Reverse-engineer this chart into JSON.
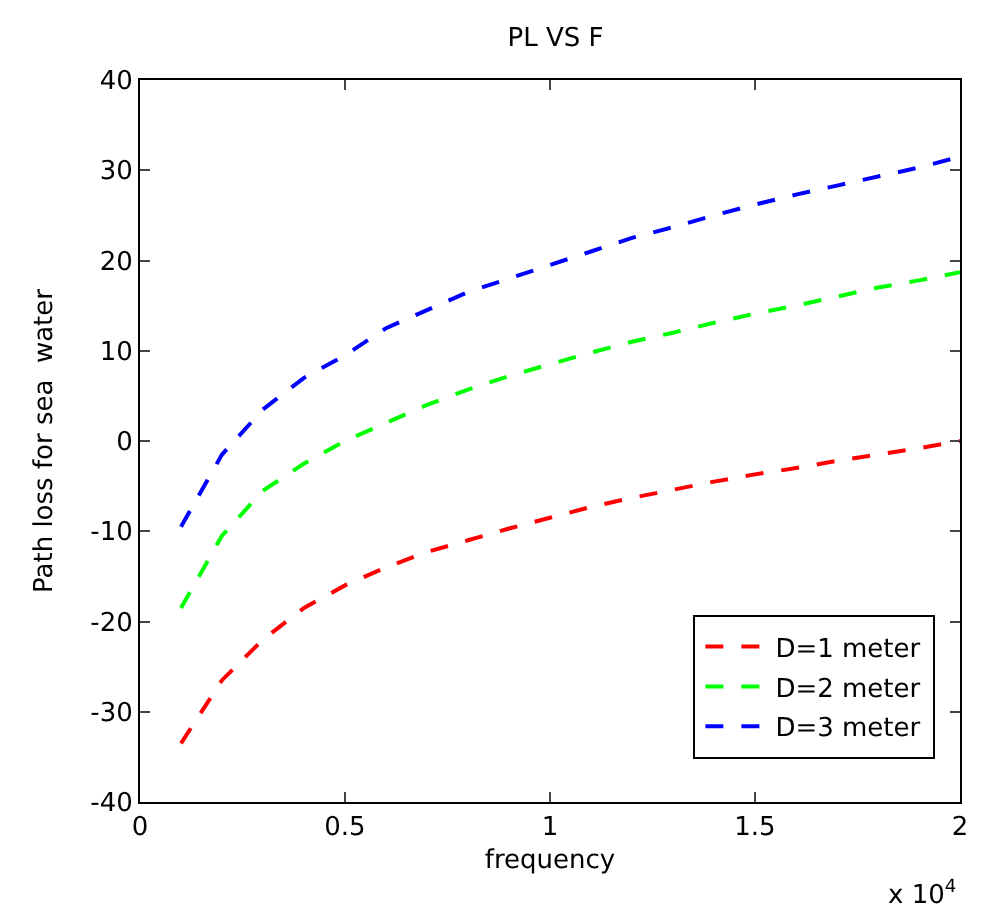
{
  "chart_data": {
    "type": "line",
    "title": "PL VS F",
    "xlabel": "frequency",
    "ylabel": "Path loss for sea  water",
    "x": [
      0.1,
      0.2,
      0.3,
      0.4,
      0.5,
      0.6,
      0.7,
      0.8,
      0.9,
      1.0,
      1.1,
      1.2,
      1.3,
      1.4,
      1.5,
      1.6,
      1.7,
      1.8,
      1.9,
      2.0
    ],
    "series": [
      {
        "name": "D=1 meter",
        "color": "#ff0000",
        "values": [
          -33.5,
          -26.5,
          -22,
          -18.5,
          -16,
          -14,
          -12.3,
          -11,
          -9.7,
          -8.5,
          -7.3,
          -6.3,
          -5.4,
          -4.5,
          -3.7,
          -3,
          -2.2,
          -1.5,
          -0.8,
          0
        ]
      },
      {
        "name": "D=2 meter",
        "color": "#00ff00",
        "values": [
          -18.5,
          -10.5,
          -5.5,
          -2.5,
          0,
          2,
          4,
          5.7,
          7.2,
          8.5,
          9.8,
          11,
          12,
          13.1,
          14.1,
          15,
          16,
          17,
          17.8,
          18.7
        ]
      },
      {
        "name": "D=3 meter",
        "color": "#0000ff",
        "values": [
          -9.5,
          -1.5,
          3.5,
          7,
          9.5,
          12.5,
          14.5,
          16.5,
          18,
          19.5,
          21,
          22.5,
          23.7,
          25,
          26.2,
          27.3,
          28.3,
          29.3,
          30.3,
          31.5
        ]
      }
    ],
    "xlim": [
      0,
      2
    ],
    "xticks": [
      0,
      0.5,
      1,
      1.5,
      2
    ],
    "ylim": [
      -40,
      40
    ],
    "yticks": [
      -40,
      -30,
      -20,
      -10,
      0,
      10,
      20,
      30,
      40
    ],
    "annotations": [
      "x 10$^{4}$"
    ],
    "legend": "bottom right",
    "line_style": "dashed",
    "marker": "none"
  }
}
